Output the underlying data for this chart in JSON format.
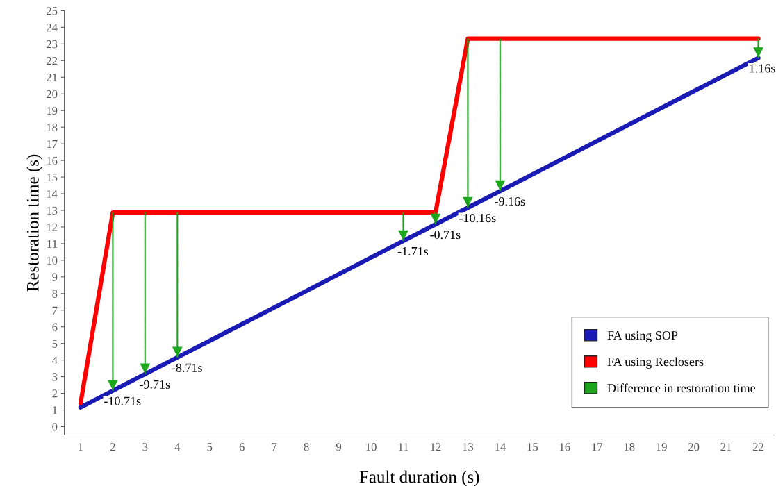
{
  "chart_data": {
    "type": "line",
    "xlabel": "Fault duration (s)",
    "ylabel": "Restoration time (s)",
    "categories": [
      "1",
      "2",
      "3",
      "4",
      "5",
      "6",
      "7",
      "8",
      "9",
      "10",
      "11",
      "12",
      "13",
      "14",
      "15",
      "16",
      "17",
      "18",
      "19",
      "20",
      "21",
      "22"
    ],
    "ylim": [
      -0.5,
      25
    ],
    "yticks": [
      0,
      1,
      2,
      3,
      4,
      5,
      6,
      7,
      8,
      9,
      10,
      11,
      12,
      13,
      14,
      15,
      16,
      17,
      18,
      19,
      20,
      21,
      22,
      23,
      24,
      25
    ],
    "grid": false,
    "legend": "bottom right",
    "series": [
      {
        "name": "FA using SOP",
        "color": "#1a1ab4",
        "values": [
          1.16,
          2.16,
          3.16,
          4.16,
          5.16,
          6.16,
          7.16,
          8.16,
          9.16,
          10.16,
          11.16,
          12.16,
          13.16,
          14.16,
          15.16,
          16.16,
          17.16,
          18.16,
          19.16,
          20.16,
          21.16,
          22.16
        ]
      },
      {
        "name": "FA using Reclosers",
        "color": "#ff0000",
        "values": [
          1.4,
          12.87,
          12.87,
          12.87,
          12.87,
          12.87,
          12.87,
          12.87,
          12.87,
          12.87,
          12.87,
          12.87,
          23.32,
          23.32,
          23.32,
          23.32,
          23.32,
          23.32,
          23.32,
          23.32,
          23.32,
          23.32
        ]
      },
      {
        "name": "Difference in restoration time",
        "type": "bar",
        "color": "#1ea51e",
        "line_style": "dotted",
        "base": [
          null,
          12.87,
          12.87,
          12.87,
          null,
          null,
          null,
          null,
          null,
          null,
          12.87,
          12.87,
          23.32,
          23.32,
          null,
          null,
          null,
          null,
          null,
          null,
          null,
          23.32
        ],
        "values": [
          null,
          -10.71,
          -9.71,
          -8.71,
          null,
          null,
          null,
          null,
          null,
          null,
          -1.71,
          -0.71,
          -10.16,
          -9.16,
          null,
          null,
          null,
          null,
          null,
          null,
          null,
          -1.16
        ],
        "value_labels": [
          null,
          "-10.71s",
          "-9.71s",
          "-8.71s",
          null,
          null,
          null,
          null,
          null,
          null,
          "-1.71s",
          "-0.71s",
          "-10.16s",
          "-9.16s",
          null,
          null,
          null,
          null,
          null,
          null,
          null,
          "1.16s"
        ]
      }
    ]
  }
}
